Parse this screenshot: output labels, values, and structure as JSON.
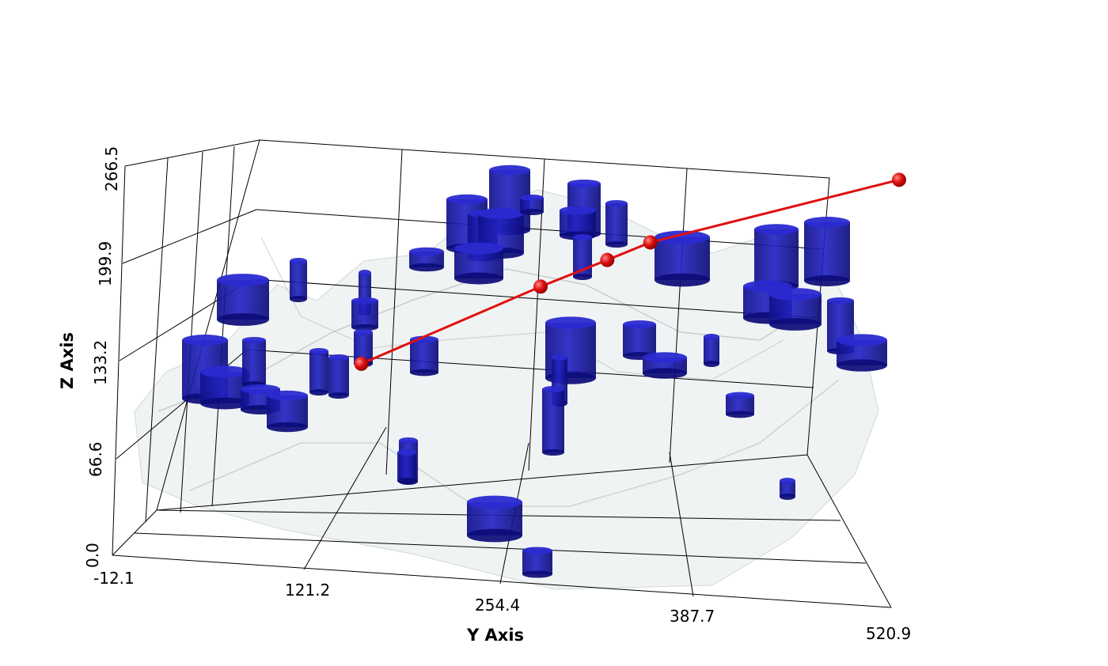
{
  "chart_data": {
    "type": "scatter",
    "render": "3d",
    "y_axis": {
      "label": "Y Axis",
      "ticks": [
        "-12.1",
        "121.2",
        "254.4",
        "387.7",
        "520.9"
      ],
      "range": [
        -12.1,
        520.9
      ]
    },
    "z_axis": {
      "label": "Z Axis",
      "ticks": [
        "0.0",
        "66.6",
        "133.2",
        "199.9",
        "266.5"
      ],
      "range": [
        0.0,
        266.5
      ]
    },
    "grid": true,
    "colors": {
      "cylinders": "#1c1cb0",
      "trajectory": "#e01010",
      "surface": "#dfe6e6"
    },
    "trajectory_points": [
      {
        "y": 121.2,
        "z": 100
      },
      {
        "y": 254.4,
        "z": 145
      },
      {
        "y": 304.0,
        "z": 160
      },
      {
        "y": 336.0,
        "z": 170
      },
      {
        "y": 520.9,
        "z": 195
      }
    ]
  }
}
